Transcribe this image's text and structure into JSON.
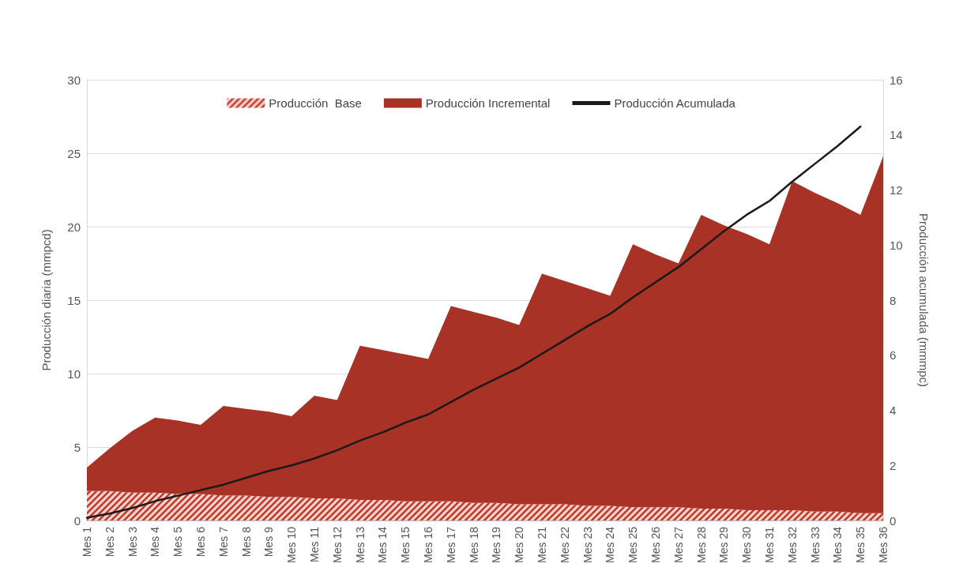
{
  "chart_data": {
    "type": "area",
    "stacked": true,
    "ylabel": "Producción diaria (mmpcd)",
    "y2label": "Producción acumulada (mmmpc)",
    "categories": [
      "Mes 1",
      "Mes 2",
      "Mes 3",
      "Mes 4",
      "Mes 5",
      "Mes 6",
      "Mes 7",
      "Mes 8",
      "Mes 9",
      "Mes 10",
      "Mes 11",
      "Mes 12",
      "Mes 13",
      "Mes 14",
      "Mes 15",
      "Mes 16",
      "Mes 17",
      "Mes 18",
      "Mes 19",
      "Mes 20",
      "Mes 21",
      "Mes 22",
      "Mes 23",
      "Mes 24",
      "Mes 25",
      "Mes 26",
      "Mes 27",
      "Mes 28",
      "Mes 29",
      "Mes 30",
      "Mes 31",
      "Mes 32",
      "Mes 33",
      "Mes 34",
      "Mes 35",
      "Mes 36"
    ],
    "series": [
      {
        "name": "Producción  Base",
        "color": "#c0392b",
        "values": [
          2.0,
          2.0,
          1.9,
          1.9,
          1.8,
          1.8,
          1.7,
          1.7,
          1.6,
          1.6,
          1.5,
          1.5,
          1.4,
          1.4,
          1.3,
          1.3,
          1.3,
          1.2,
          1.2,
          1.1,
          1.1,
          1.1,
          1.0,
          1.0,
          0.9,
          0.9,
          0.9,
          0.8,
          0.8,
          0.7,
          0.7,
          0.7,
          0.6,
          0.6,
          0.5,
          0.5
        ]
      },
      {
        "name": "Producción Incremental",
        "color": "#a93226",
        "values": [
          1.6,
          2.9,
          4.2,
          5.1,
          5.0,
          4.7,
          6.1,
          5.9,
          5.8,
          5.5,
          7.0,
          6.7,
          10.5,
          10.2,
          10.0,
          9.7,
          13.3,
          13.0,
          12.6,
          12.2,
          15.7,
          15.2,
          14.8,
          14.3,
          17.9,
          17.2,
          16.6,
          20.0,
          19.3,
          18.8,
          18.1,
          22.4,
          21.7,
          21.0,
          20.3,
          24.3
        ]
      },
      {
        "name": "Producción Acumulada",
        "type": "line",
        "axis": "y2",
        "color": "#1a1a1a",
        "values": [
          0.1,
          0.25,
          0.45,
          0.7,
          0.9,
          1.1,
          1.3,
          1.55,
          1.8,
          2.0,
          2.25,
          2.55,
          2.9,
          3.2,
          3.55,
          3.85,
          4.3,
          4.75,
          5.15,
          5.55,
          6.05,
          6.55,
          7.05,
          7.5,
          8.1,
          8.65,
          9.2,
          9.85,
          10.5,
          11.1,
          11.6,
          12.3,
          12.95,
          13.6,
          14.3,
          null
        ]
      }
    ],
    "ylim": [
      0,
      30
    ],
    "yticks": [
      0,
      5,
      10,
      15,
      20,
      25,
      30
    ],
    "y2lim": [
      0,
      16
    ],
    "y2ticks": [
      0,
      2,
      4,
      6,
      8,
      10,
      12,
      14,
      16
    ],
    "grid": "y",
    "legend": "top",
    "marker": "none",
    "line_style": "solid"
  }
}
